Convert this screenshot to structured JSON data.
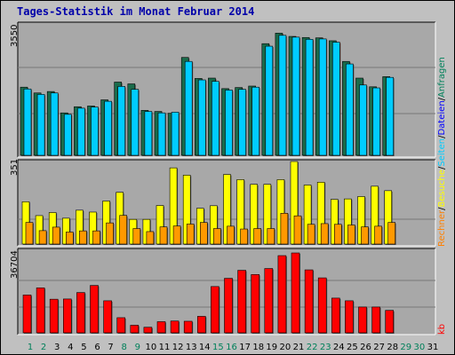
{
  "title": "Tages-Statistik im Monat Februar 2014",
  "right_labels": {
    "top": {
      "hits": "Anfragen",
      "sep1": "/",
      "files": "Dateien",
      "sep2": "/",
      "pages": "Seiten",
      "sep3": "/",
      "visits": "Besuche",
      "sep4": "/",
      "sites": "Rechner"
    },
    "bottom": "kb"
  },
  "colors": {
    "hits": "#1b6b4b",
    "files": "#00ccff",
    "pages": "#ffff00",
    "visits": "#ff9900",
    "sites": "#ff8000",
    "kbytes": "#ff0000",
    "plot_bg": "#a8a8a8",
    "grid": "#777777",
    "day_black": "#000000",
    "day_green": "#00805a"
  },
  "chart_data": [
    {
      "type": "bar",
      "ytick": "3550",
      "ylim": [
        0,
        3550
      ],
      "categories": [
        1,
        2,
        3,
        4,
        5,
        6,
        7,
        8,
        9,
        10,
        11,
        12,
        13,
        14,
        15,
        16,
        17,
        18,
        19,
        20,
        21,
        22,
        23,
        24,
        25,
        26,
        27,
        28
      ],
      "series": [
        {
          "name": "Anfragen",
          "values": [
            1880,
            1720,
            1760,
            1170,
            1340,
            1360,
            1530,
            2020,
            1970,
            1240,
            1210,
            1160,
            2700,
            2120,
            2130,
            1840,
            1870,
            1910,
            3080,
            3370,
            3280,
            3250,
            3240,
            3160,
            2590,
            2130,
            1890,
            2170
          ]
        },
        {
          "name": "Dateien",
          "values": [
            1830,
            1680,
            1720,
            1130,
            1300,
            1330,
            1490,
            1900,
            1820,
            1210,
            1170,
            1190,
            2590,
            2080,
            2040,
            1800,
            1820,
            1880,
            3010,
            3310,
            3260,
            3200,
            3210,
            3120,
            2520,
            1940,
            1860,
            2150
          ]
        }
      ]
    },
    {
      "type": "bar",
      "ytick": "351",
      "ylim": [
        0,
        351
      ],
      "categories": [
        1,
        2,
        3,
        4,
        5,
        6,
        7,
        8,
        9,
        10,
        11,
        12,
        13,
        14,
        15,
        16,
        17,
        18,
        19,
        20,
        21,
        22,
        23,
        24,
        25,
        26,
        27,
        28
      ],
      "series": [
        {
          "name": "Seiten",
          "values": [
            180,
            121,
            134,
            110,
            144,
            136,
            183,
            220,
            105,
            105,
            164,
            324,
            293,
            152,
            163,
            296,
            274,
            254,
            254,
            274,
            351,
            251,
            263,
            190,
            192,
            202,
            246,
            227
          ]
        },
        {
          "name": "Besuche",
          "values": [
            92,
            57,
            72,
            51,
            56,
            56,
            90,
            122,
            66,
            53,
            73,
            77,
            85,
            92,
            66,
            76,
            64,
            66,
            66,
            131,
            120,
            84,
            87,
            84,
            81,
            73,
            76,
            92
          ]
        }
      ]
    },
    {
      "type": "bar",
      "ytick": "36704",
      "ylim": [
        0,
        36704
      ],
      "categories": [
        1,
        2,
        3,
        4,
        5,
        6,
        7,
        8,
        9,
        10,
        11,
        12,
        13,
        14,
        15,
        16,
        17,
        18,
        19,
        20,
        21,
        22,
        23,
        24,
        25,
        26,
        27,
        28
      ],
      "series": [
        {
          "name": "kb",
          "values": [
            17000,
            20200,
            15100,
            15200,
            18100,
            21300,
            14400,
            6800,
            3400,
            2500,
            5000,
            5300,
            5200,
            7400,
            20800,
            24500,
            28100,
            26200,
            28900,
            34700,
            35900,
            28300,
            24700,
            15600,
            14400,
            11600,
            11600,
            10100
          ]
        }
      ]
    }
  ],
  "x_labels": [
    "1",
    "2",
    "3",
    "4",
    "5",
    "6",
    "7",
    "8",
    "9",
    "10",
    "11",
    "12",
    "13",
    "14",
    "15",
    "16",
    "17",
    "18",
    "19",
    "20",
    "21",
    "22",
    "23",
    "24",
    "25",
    "26",
    "27",
    "28",
    "29",
    "30",
    "31"
  ],
  "weekend_days": [
    1,
    2,
    8,
    9,
    15,
    16,
    22,
    23,
    29,
    30
  ]
}
